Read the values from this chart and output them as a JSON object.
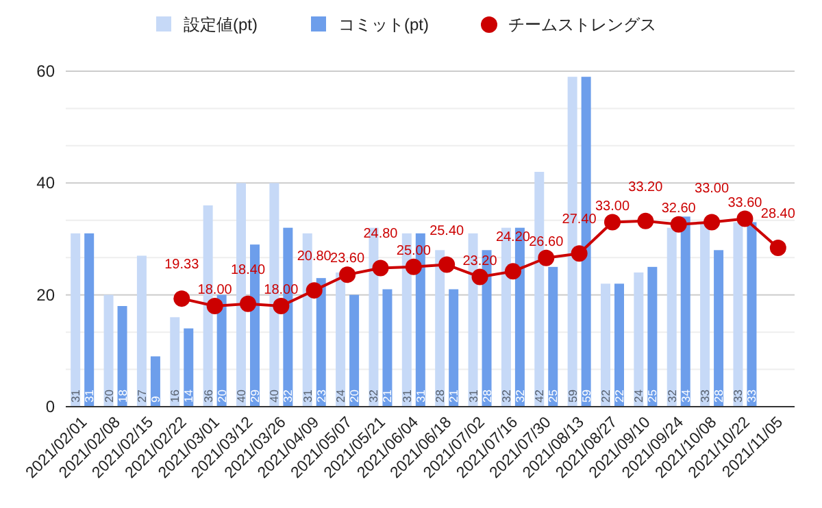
{
  "chart_data": {
    "type": "bar",
    "categories": [
      "2021/02/01",
      "2021/02/08",
      "2021/02/15",
      "2021/02/22",
      "2021/03/01",
      "2021/03/12",
      "2021/03/26",
      "2021/04/09",
      "2021/05/07",
      "2021/05/21",
      "2021/06/04",
      "2021/06/18",
      "2021/07/02",
      "2021/07/16",
      "2021/07/30",
      "2021/08/13",
      "2021/08/27",
      "2021/09/10",
      "2021/09/24",
      "2021/10/08",
      "2021/10/22",
      "2021/11/05"
    ],
    "series": [
      {
        "name": "設定値(pt)",
        "color": "#c6d9f7",
        "values": [
          31,
          20,
          27,
          16,
          36,
          40,
          40,
          31,
          24,
          32,
          31,
          28,
          31,
          32,
          42,
          59,
          22,
          24,
          32,
          33,
          33,
          null
        ]
      },
      {
        "name": "コミット(pt)",
        "color": "#6d9eeb",
        "values": [
          31,
          18,
          9,
          14,
          20,
          29,
          32,
          23,
          20,
          21,
          31,
          21,
          28,
          32,
          25,
          59,
          22,
          25,
          34,
          28,
          33,
          null
        ]
      },
      {
        "name": "チームストレングス",
        "type": "line",
        "color": "#cc0000",
        "marker": "circle",
        "values": [
          null,
          null,
          null,
          19.33,
          18.0,
          18.4,
          18.0,
          20.8,
          23.6,
          24.8,
          25.0,
          25.4,
          23.2,
          24.2,
          26.6,
          27.4,
          33.0,
          33.2,
          32.6,
          33.0,
          33.6,
          28.4
        ],
        "value_labels": [
          null,
          null,
          null,
          "19.33",
          "18.00",
          "18.40",
          "18.00",
          "20.80",
          "23.60",
          "24.80",
          "25.00",
          "25.40",
          "23.20",
          "24.20",
          "26.60",
          "27.40",
          "33.00",
          "33.20",
          "32.60",
          "33.00",
          "33.60",
          "28.40"
        ]
      }
    ],
    "ylim": [
      0,
      60
    ],
    "yticks": [
      0,
      {
        "value": 6.67,
        "label": null
      },
      {
        "value": 13.33,
        "label": null
      },
      20,
      {
        "value": 26.67,
        "label": null
      },
      {
        "value": 33.33,
        "label": null
      },
      40,
      {
        "value": 46.67,
        "label": null
      },
      {
        "value": 53.33,
        "label": null
      },
      60
    ],
    "grid": "y",
    "legend": "top",
    "data_labels": true
  }
}
